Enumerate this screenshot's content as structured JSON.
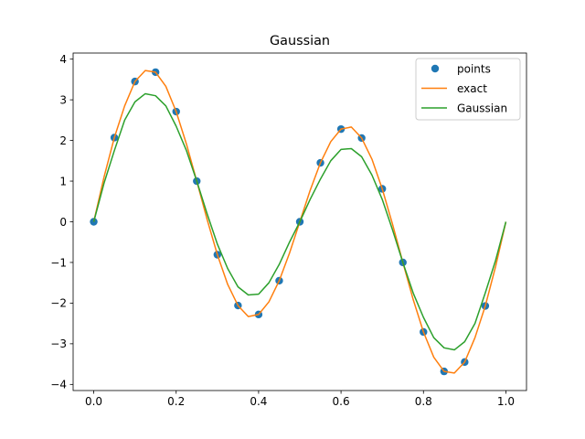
{
  "chart_data": {
    "type": "line",
    "title": "Gaussian",
    "xlabel": "",
    "ylabel": "",
    "xlim": [
      -0.05,
      1.05
    ],
    "ylim": [
      -4.15,
      4.15
    ],
    "x_ticks": [
      0.0,
      0.2,
      0.4,
      0.6,
      0.8,
      1.0
    ],
    "x_tick_labels": [
      "0.0",
      "0.2",
      "0.4",
      "0.6",
      "0.8",
      "1.0"
    ],
    "y_ticks": [
      -4,
      -3,
      -2,
      -1,
      0,
      1,
      2,
      3,
      4
    ],
    "y_tick_labels": [
      "−4",
      "−3",
      "−2",
      "−1",
      "0",
      "1",
      "2",
      "3",
      "4"
    ],
    "grid": false,
    "legend_placement": "top-right",
    "series": [
      {
        "name": "points",
        "kind": "scatter",
        "color": "#1f77b4",
        "x": [
          0.0,
          0.05,
          0.1,
          0.15,
          0.2,
          0.25,
          0.3,
          0.35,
          0.4,
          0.45,
          0.5,
          0.55,
          0.6,
          0.65,
          0.7,
          0.75,
          0.8,
          0.85,
          0.9,
          0.95
        ],
        "y": [
          0.0,
          2.07,
          3.45,
          3.68,
          2.71,
          1.0,
          -0.81,
          -2.06,
          -2.28,
          -1.45,
          0.0,
          1.45,
          2.28,
          2.06,
          0.81,
          -1.0,
          -2.71,
          -3.68,
          -3.45,
          -2.07
        ]
      },
      {
        "name": "exact",
        "kind": "line",
        "color": "#ff7f0e",
        "x": [
          0.0,
          0.025,
          0.05,
          0.075,
          0.1,
          0.125,
          0.15,
          0.175,
          0.2,
          0.225,
          0.25,
          0.275,
          0.3,
          0.325,
          0.35,
          0.375,
          0.4,
          0.425,
          0.45,
          0.475,
          0.5,
          0.525,
          0.55,
          0.575,
          0.6,
          0.625,
          0.65,
          0.675,
          0.7,
          0.725,
          0.75,
          0.775,
          0.8,
          0.825,
          0.85,
          0.875,
          0.9,
          0.925,
          0.95,
          0.975,
          1.0
        ],
        "y": [
          0.0,
          1.1,
          2.07,
          2.85,
          3.45,
          3.72,
          3.68,
          3.33,
          2.71,
          1.91,
          1.0,
          0.06,
          -0.81,
          -1.54,
          -2.06,
          -2.33,
          -2.28,
          -1.97,
          -1.45,
          -0.77,
          0.0,
          0.77,
          1.45,
          1.97,
          2.28,
          2.33,
          2.06,
          1.54,
          0.81,
          -0.06,
          -1.0,
          -1.91,
          -2.71,
          -3.33,
          -3.68,
          -3.72,
          -3.45,
          -2.85,
          -2.07,
          -1.1,
          0.0
        ]
      },
      {
        "name": "Gaussian",
        "kind": "line",
        "color": "#2ca02c",
        "x": [
          0.0,
          0.025,
          0.05,
          0.075,
          0.1,
          0.125,
          0.15,
          0.175,
          0.2,
          0.225,
          0.25,
          0.275,
          0.3,
          0.325,
          0.35,
          0.375,
          0.4,
          0.425,
          0.45,
          0.475,
          0.5,
          0.525,
          0.55,
          0.575,
          0.6,
          0.625,
          0.65,
          0.675,
          0.7,
          0.725,
          0.75,
          0.775,
          0.8,
          0.825,
          0.85,
          0.875,
          0.9,
          0.925,
          0.95,
          0.975,
          1.0
        ],
        "y": [
          0.0,
          0.95,
          1.75,
          2.5,
          2.95,
          3.15,
          3.1,
          2.85,
          2.35,
          1.75,
          1.0,
          0.2,
          -0.55,
          -1.15,
          -1.6,
          -1.8,
          -1.78,
          -1.5,
          -1.05,
          -0.5,
          0.0,
          0.55,
          1.05,
          1.5,
          1.78,
          1.8,
          1.6,
          1.15,
          0.55,
          -0.2,
          -1.0,
          -1.75,
          -2.35,
          -2.85,
          -3.1,
          -3.15,
          -2.95,
          -2.5,
          -1.75,
          -0.95,
          0.0
        ]
      }
    ]
  }
}
